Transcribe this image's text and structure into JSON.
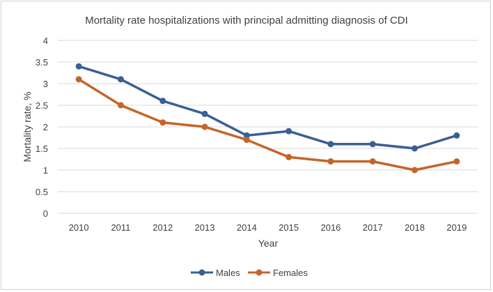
{
  "chart_data": {
    "type": "line",
    "title": "Mortality rate hospitalizations with principal admitting diagnosis of CDI",
    "xlabel": "Year",
    "ylabel": "Mortality rate, %",
    "categories": [
      "2010",
      "2011",
      "2012",
      "2013",
      "2014",
      "2015",
      "2016",
      "2017",
      "2018",
      "2019"
    ],
    "ylim": [
      0,
      4
    ],
    "yticks": [
      "0",
      "0.5",
      "1",
      "1.5",
      "2",
      "2.5",
      "3",
      "3.5",
      "4"
    ],
    "grid": true,
    "legend_position": "bottom",
    "series": [
      {
        "name": "Males",
        "color": "#3a5f95",
        "values": [
          3.4,
          3.1,
          2.6,
          2.3,
          1.8,
          1.9,
          1.6,
          1.6,
          1.5,
          1.8
        ]
      },
      {
        "name": "Females",
        "color": "#c5652a",
        "values": [
          3.1,
          2.5,
          2.1,
          2.0,
          1.7,
          1.3,
          1.2,
          1.2,
          1.0,
          1.2
        ]
      }
    ]
  }
}
